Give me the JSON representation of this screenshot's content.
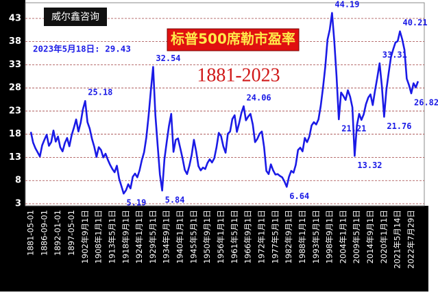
{
  "chart_data": {
    "type": "line",
    "title": "标普500席勒市盈率",
    "subtitle": "1881-2023",
    "source": "威尔鑫咨询",
    "annotation": "2023年5月18日: 29.43",
    "color": "#1a1ae6",
    "grid": true,
    "ylim": [
      3,
      45.5
    ],
    "yticks": [
      3,
      8,
      13,
      18,
      23,
      28,
      33,
      38,
      43
    ],
    "categories": [
      "1881-05-01",
      null,
      null,
      null,
      null,
      null,
      "1886-09-01",
      null,
      null,
      null,
      null,
      null,
      "1892-01-01",
      null,
      null,
      null,
      null,
      null,
      "1897-05-01",
      null,
      null,
      null,
      null,
      null,
      "1902年9月1日",
      null,
      null,
      null,
      null,
      null,
      "1908年1月1日",
      null,
      null,
      null,
      null,
      null,
      "1913年5月1日",
      null,
      null,
      null,
      null,
      null,
      "1918年9月1日",
      null,
      null,
      null,
      null,
      null,
      "1924年1月1日",
      null,
      null,
      null,
      null,
      null,
      "1929年5月1日",
      null,
      null,
      null,
      null,
      null,
      "1934年9月1日",
      null,
      null,
      null,
      null,
      null,
      "1940年1月1日",
      null,
      null,
      null,
      null,
      null,
      "1945年5月1日",
      null,
      null,
      null,
      null,
      null,
      "1950年9月1日",
      null,
      null,
      null,
      null,
      null,
      "1956年1月1日",
      null,
      null,
      null,
      null,
      null,
      "1961年5月1日",
      null,
      null,
      null,
      null,
      null,
      "1966年9月1日",
      null,
      null,
      null,
      null,
      null,
      "1972年1月1日",
      null,
      null,
      null,
      null,
      null,
      "1977年5月1日",
      null,
      null,
      null,
      null,
      null,
      "1982年9月1日",
      null,
      null,
      null,
      null,
      null,
      "1988年1月1日",
      null,
      null,
      null,
      null,
      null,
      "1993年5月1日",
      null,
      null,
      null,
      null,
      null,
      "1998年9月1日",
      null,
      null,
      null,
      null,
      null,
      "2004年1月1日",
      null,
      null,
      null,
      null,
      null,
      "2009年5月1日",
      null,
      null,
      null,
      null,
      null,
      "2014年9月1日",
      null,
      null,
      null,
      null,
      null,
      "2020年1月1日",
      null,
      null,
      null,
      null,
      null,
      "2021年5月14日",
      null,
      null,
      null,
      null,
      null,
      "2022年7月29日",
      null,
      null,
      null
    ],
    "values": [
      18.5,
      16.2,
      15.0,
      14.1,
      13.2,
      15.6,
      16.8,
      17.9,
      15.5,
      16.3,
      18.8,
      16.4,
      17.5,
      15.2,
      14.3,
      16.1,
      17.2,
      15.4,
      17.8,
      19.4,
      21.2,
      18.6,
      20.5,
      23.4,
      25.18,
      20.6,
      19.2,
      17.0,
      15.3,
      13.1,
      15.2,
      14.6,
      13.0,
      13.8,
      12.5,
      11.4,
      10.5,
      9.8,
      11.2,
      8.4,
      6.8,
      5.19,
      5.9,
      7.2,
      6.3,
      8.8,
      9.5,
      8.7,
      10.2,
      12.4,
      14.1,
      17.3,
      22.0,
      27.5,
      32.54,
      22.1,
      15.6,
      9.3,
      5.84,
      12.6,
      16.3,
      19.8,
      22.4,
      14.2,
      16.8,
      17.1,
      15.0,
      12.8,
      10.3,
      9.4,
      11.2,
      13.5,
      16.8,
      14.3,
      11.1,
      10.2,
      10.8,
      10.5,
      11.8,
      12.6,
      11.9,
      12.8,
      15.2,
      18.3,
      17.6,
      15.4,
      14.0,
      18.1,
      18.6,
      21.3,
      22.1,
      18.5,
      20.4,
      22.6,
      24.06,
      21.0,
      21.8,
      22.4,
      20.1,
      16.3,
      17.0,
      18.1,
      18.6,
      15.2,
      10.1,
      9.4,
      11.5,
      10.2,
      9.3,
      9.4,
      9.0,
      8.7,
      7.8,
      6.64,
      8.8,
      10.1,
      9.7,
      11.4,
      14.6,
      15.1,
      14.3,
      17.2,
      16.3,
      17.5,
      19.9,
      20.6,
      20.1,
      21.2,
      24.1,
      28.0,
      32.5,
      38.4,
      40.6,
      44.19,
      38.1,
      30.5,
      21.21,
      27.0,
      26.3,
      25.4,
      27.5,
      26.1,
      23.8,
      13.32,
      19.9,
      22.4,
      21.1,
      22.3,
      24.5,
      25.9,
      26.6,
      24.3,
      27.4,
      30.2,
      33.31,
      28.4,
      21.76,
      27.6,
      31.2,
      34.6,
      36.3,
      37.8,
      38.1,
      40.21,
      38.5,
      36.2,
      30.0,
      28.6,
      26.82,
      29.0,
      28.1,
      29.43
    ],
    "value_labels": [
      null,
      null,
      null,
      null,
      null,
      null,
      null,
      null,
      null,
      null,
      null,
      null,
      null,
      null,
      null,
      null,
      null,
      null,
      null,
      null,
      null,
      null,
      null,
      null,
      "25.18",
      null,
      null,
      null,
      null,
      null,
      null,
      null,
      null,
      null,
      null,
      null,
      null,
      null,
      null,
      null,
      null,
      "5.19",
      null,
      null,
      null,
      null,
      null,
      null,
      null,
      null,
      null,
      null,
      null,
      null,
      "32.54",
      null,
      null,
      null,
      "5.84",
      null,
      null,
      null,
      null,
      null,
      null,
      null,
      null,
      null,
      null,
      null,
      null,
      null,
      null,
      null,
      null,
      null,
      null,
      null,
      null,
      null,
      null,
      null,
      null,
      null,
      null,
      null,
      null,
      null,
      null,
      null,
      null,
      null,
      null,
      null,
      "24.06",
      null,
      null,
      null,
      null,
      null,
      null,
      null,
      null,
      null,
      null,
      null,
      null,
      null,
      null,
      null,
      null,
      null,
      null,
      "6.64",
      null,
      null,
      null,
      null,
      null,
      null,
      null,
      null,
      null,
      null,
      null,
      null,
      null,
      null,
      null,
      null,
      null,
      null,
      null,
      "44.19",
      null,
      null,
      "21.21",
      null,
      null,
      null,
      null,
      null,
      null,
      "13.32",
      null,
      null,
      null,
      null,
      null,
      null,
      null,
      null,
      null,
      null,
      "33.31",
      null,
      "21.76",
      null,
      null,
      null,
      null,
      null,
      null,
      "40.21",
      null,
      null,
      null,
      null,
      "26.82",
      null,
      null,
      null
    ]
  }
}
